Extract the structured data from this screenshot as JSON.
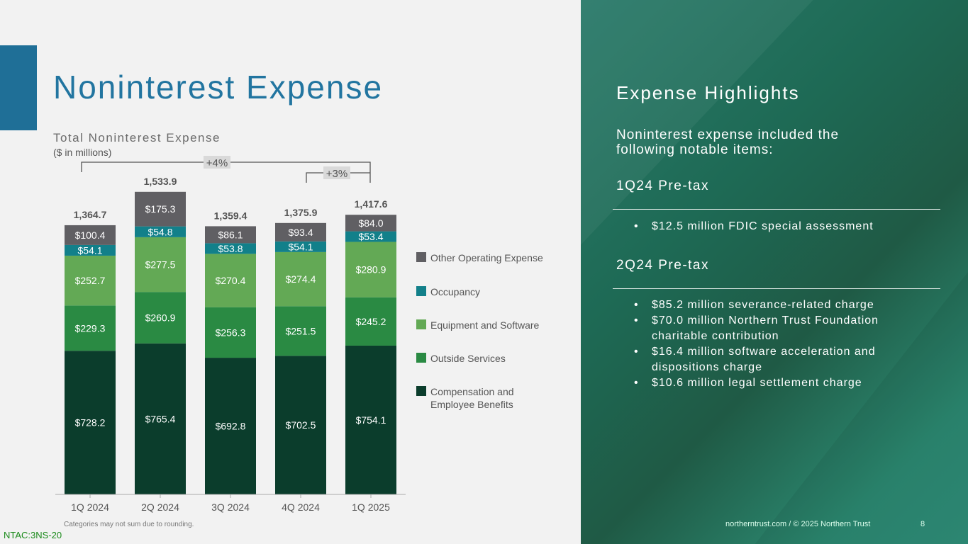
{
  "title": "Noninterest Expense",
  "chart_data": {
    "type": "bar",
    "stacked": true,
    "title": "Total Noninterest Expense",
    "subtitle": "($ in millions)",
    "categories": [
      "1Q 2024",
      "2Q 2024",
      "3Q 2024",
      "4Q 2024",
      "1Q 2025"
    ],
    "totals": [
      "1,364.7",
      "1,533.9",
      "1,359.4",
      "1,375.9",
      "1,417.6"
    ],
    "total_values": [
      1364.7,
      1533.9,
      1359.4,
      1375.9,
      1417.6
    ],
    "series": [
      {
        "name": "Compensation and Employee Benefits",
        "color": "#0b3d2c",
        "values": [
          728.2,
          765.4,
          692.8,
          702.5,
          754.1
        ]
      },
      {
        "name": "Outside Services",
        "color": "#2a8a43",
        "values": [
          229.3,
          260.9,
          256.3,
          251.5,
          245.2
        ]
      },
      {
        "name": "Equipment and Software",
        "color": "#63a955",
        "values": [
          252.7,
          277.5,
          270.4,
          274.4,
          280.9
        ]
      },
      {
        "name": "Occupancy",
        "color": "#12808a",
        "values": [
          54.1,
          54.8,
          53.8,
          54.1,
          53.4
        ]
      },
      {
        "name": "Other Operating Expense",
        "color": "#605f63",
        "values": [
          100.4,
          175.3,
          86.1,
          93.4,
          84.0
        ]
      }
    ],
    "annotations": [
      "+4%",
      "+3%"
    ],
    "legend_position": "right"
  },
  "legend": [
    "Other Operating Expense",
    "Occupancy",
    "Equipment and Software",
    "Outside Services",
    "Compensation and",
    "Employee Benefits"
  ],
  "footnote": "Categories  may not sum due to rounding.",
  "code": "NTAC:3NS-20",
  "panel": {
    "heading": "Expense Highlights",
    "intro": "Noninterest expense included the following notable items:",
    "sec1": "1Q24 Pre-tax",
    "sec1_items": [
      "$12.5 million FDIC special assessment"
    ],
    "sec2": "2Q24 Pre-tax",
    "sec2_items": [
      "$85.2 million severance-related charge",
      "$70.0 million Northern Trust Foundation charitable contribution",
      "$16.4 million software acceleration and dispositions charge",
      "$10.6 million legal settlement charge"
    ],
    "footer": "northerntrust.com / © 2025 Northern Trust",
    "page": "8"
  }
}
